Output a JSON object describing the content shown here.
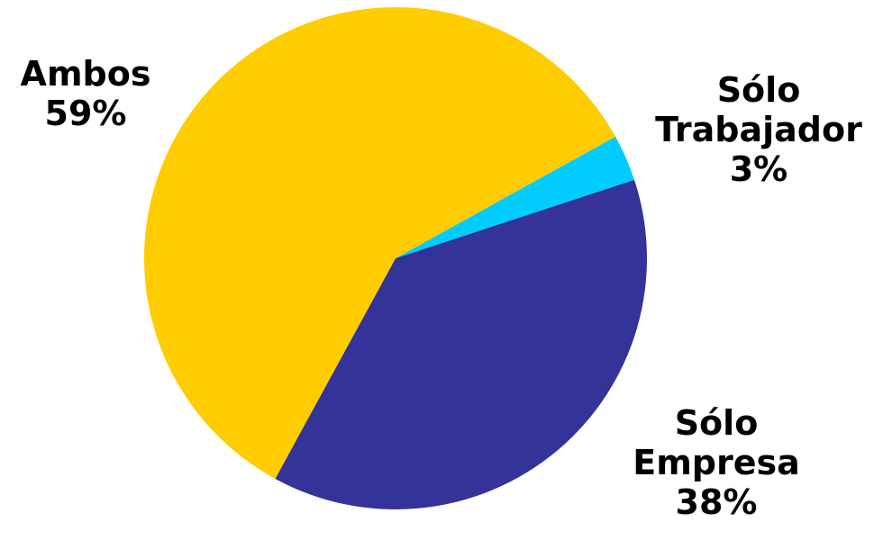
{
  "chart_data": {
    "type": "pie",
    "slices": [
      {
        "label": [
          "Sólo",
          "Trabajador"
        ],
        "value_label": "3%",
        "value": 3,
        "color": "#00CCFF"
      },
      {
        "label": [
          "Sólo",
          "Empresa"
        ],
        "value_label": "38%",
        "value": 38,
        "color": "#333399"
      },
      {
        "label": [
          "Ambos"
        ],
        "value_label": "59%",
        "value": 59,
        "color": "#FFCC00"
      }
    ]
  }
}
